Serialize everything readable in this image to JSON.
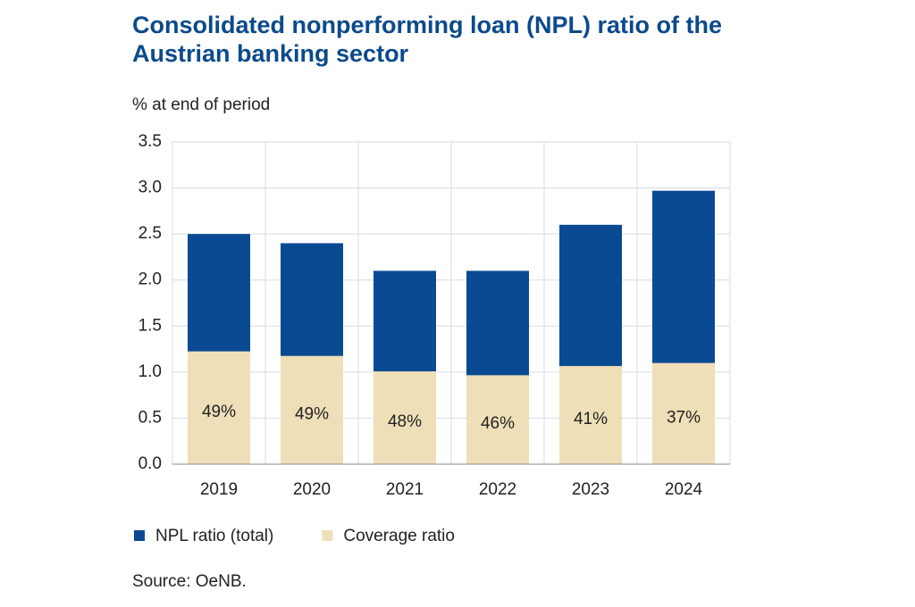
{
  "chart_data": {
    "type": "bar",
    "title": "Consolidated nonperforming loan (NPL) ratio of the Austrian banking sector",
    "subtitle": "% at end of period",
    "source": "Source: OeNB.",
    "categories": [
      "2019",
      "2020",
      "2021",
      "2022",
      "2023",
      "2024"
    ],
    "series": [
      {
        "name": "NPL ratio (total)",
        "color": "#0a4a93",
        "values": [
          2.5,
          2.4,
          2.1,
          2.1,
          2.6,
          2.97
        ]
      },
      {
        "name": "Coverage ratio",
        "color": "#efdfb8",
        "values": [
          49,
          49,
          48,
          46,
          41,
          37
        ],
        "value_labels": [
          "49%",
          "49%",
          "48%",
          "46%",
          "41%",
          "37%"
        ]
      }
    ],
    "ylim": [
      0,
      3.5
    ],
    "yticks": [
      {
        "value": 0,
        "label": "0.0"
      },
      0.5,
      {
        "value": 1,
        "label": "1.0"
      },
      1.5,
      {
        "value": 2,
        "label": "2.0"
      },
      2.5,
      {
        "value": 3,
        "label": "3.0"
      },
      3.5
    ],
    "grid": true,
    "legend": "bottom"
  }
}
